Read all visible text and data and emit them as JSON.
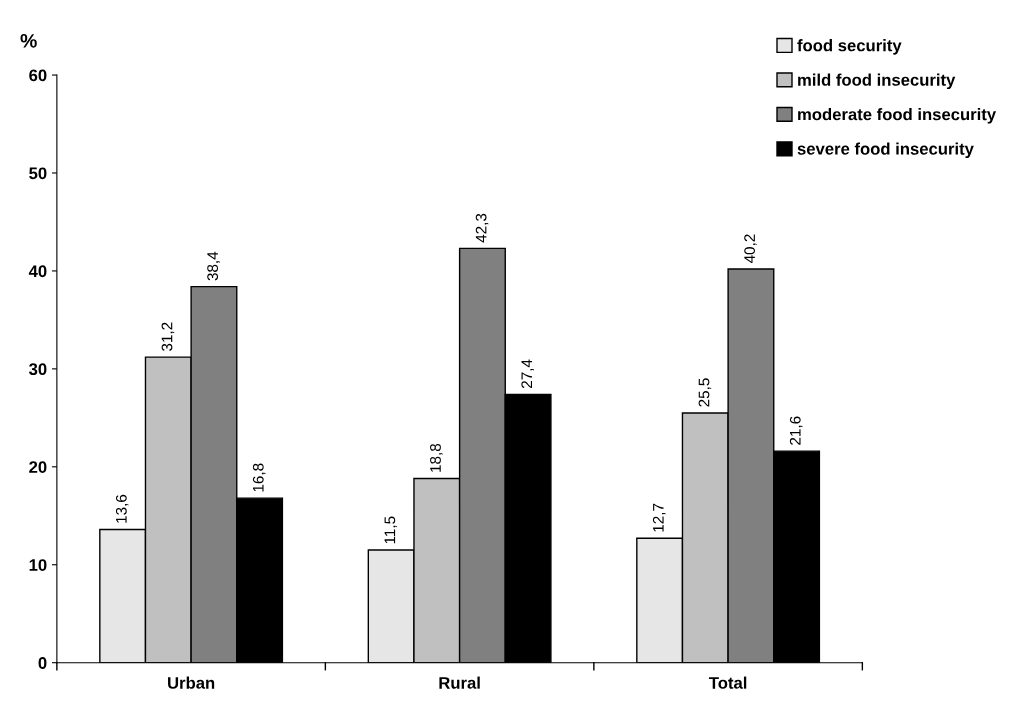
{
  "chart_data": {
    "type": "bar",
    "ylabel": "%",
    "categories": [
      "Urban",
      "Rural",
      "Total"
    ],
    "series": [
      {
        "name": "food security",
        "color": "#e6e6e6",
        "values": [
          13.6,
          11.5,
          12.7
        ],
        "value_labels": [
          "13,6",
          "11,5",
          "12,7"
        ]
      },
      {
        "name": "mild food insecurity",
        "color": "#c0c0c0",
        "values": [
          31.2,
          18.8,
          25.5
        ],
        "value_labels": [
          "31,2",
          "18,8",
          "25,5"
        ]
      },
      {
        "name": "moderate food insecurity",
        "color": "#808080",
        "values": [
          38.4,
          42.3,
          40.2
        ],
        "value_labels": [
          "38,4",
          "42,3",
          "40,2"
        ]
      },
      {
        "name": "severe food insecurity",
        "color": "#000000",
        "values": [
          16.8,
          27.4,
          21.6
        ],
        "value_labels": [
          "16,8",
          "27,4",
          "21,6"
        ]
      }
    ],
    "ylim": [
      0,
      60
    ],
    "yticks": [
      0,
      10,
      20,
      30,
      40,
      50,
      60
    ],
    "grid": false,
    "legend": "top right"
  }
}
